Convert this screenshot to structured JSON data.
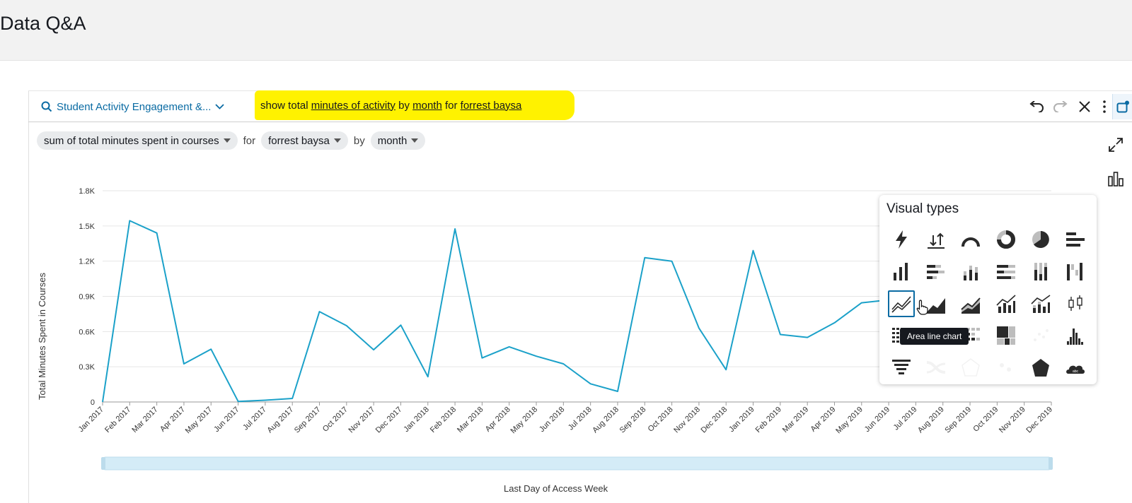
{
  "header": {
    "title": "Data Q&A"
  },
  "query_bar": {
    "topic": "Student Activity Engagement &...",
    "query_parts": [
      {
        "text": "show total ",
        "u": false
      },
      {
        "text": "minutes of activity",
        "u": true
      },
      {
        "text": " by ",
        "u": false
      },
      {
        "text": "month",
        "u": true
      },
      {
        "text": " for ",
        "u": false
      },
      {
        "text": "forrest baysa",
        "u": true
      }
    ]
  },
  "interpretation": {
    "measure": "sum of total minutes spent in courses",
    "for_word": "for",
    "filter": "forrest baysa",
    "by_word": "by",
    "group": "month"
  },
  "popover": {
    "title": "Visual types",
    "tooltip": "Area line chart",
    "icons": [
      "kpi-icon",
      "comparison-kpi-icon",
      "gauge-icon",
      "donut-icon",
      "pie-icon",
      "horizontal-bar-icon",
      "vertical-bar-icon",
      "stacked-horizontal-bar-icon",
      "stacked-vertical-bar-icon",
      "percent-horizontal-bar-icon",
      "percent-vertical-bar-icon",
      "waterfall-icon",
      "line-chart-icon",
      "area-line-chart-icon",
      "stacked-area-icon",
      "combo-bar-line-icon",
      "combo-stacked-line-icon",
      "box-plot-icon",
      "pivot-table-icon",
      "table-icon",
      "heat-map-icon",
      "tree-map-icon",
      "scatter-icon",
      "histogram-icon",
      "funnel-icon",
      "sankey-icon",
      "radar-icon",
      "map-icon",
      "filled-map-icon",
      "word-cloud-icon"
    ],
    "selected_index": 12
  },
  "chart_data": {
    "type": "line",
    "xlabel": "Last Day of Access Week",
    "ylabel": "Total Minutes Spent in Courses",
    "ylim": [
      0,
      1800
    ],
    "yticks": [
      0,
      300,
      600,
      900,
      1200,
      1500,
      1800
    ],
    "ytick_labels": [
      "0",
      "0.3K",
      "0.6K",
      "0.9K",
      "1.2K",
      "1.5K",
      "1.8K"
    ],
    "categories": [
      "Jan 2017",
      "Feb 2017",
      "Mar 2017",
      "Apr 2017",
      "May 2017",
      "Jun 2017",
      "Jul 2017",
      "Aug 2017",
      "Sep 2017",
      "Oct 2017",
      "Nov 2017",
      "Dec 2017",
      "Jan 2018",
      "Feb 2018",
      "Mar 2018",
      "Apr 2018",
      "May 2018",
      "Jun 2018",
      "Jul 2018",
      "Aug 2018",
      "Sep 2018",
      "Oct 2018",
      "Nov 2018",
      "Dec 2018",
      "Jan 2019",
      "Feb 2019",
      "Mar 2019",
      "Apr 2019",
      "May 2019",
      "Jun 2019",
      "Jul 2019",
      "Aug 2019",
      "Sep 2019",
      "Oct 2019",
      "Nov 2019",
      "Dec 2019"
    ],
    "values": [
      0,
      1545,
      1440,
      325,
      450,
      5,
      15,
      30,
      770,
      650,
      445,
      655,
      215,
      1475,
      375,
      470,
      390,
      325,
      155,
      90,
      1230,
      1200,
      630,
      275,
      1290,
      575,
      550,
      675,
      845,
      870,
      null,
      null,
      null,
      null,
      null,
      null
    ],
    "grid": true,
    "color": "#1ba1c9"
  },
  "colors": {
    "accent": "#0a6ba3",
    "highlight": "#fff200",
    "line": "#1ba1c9"
  }
}
